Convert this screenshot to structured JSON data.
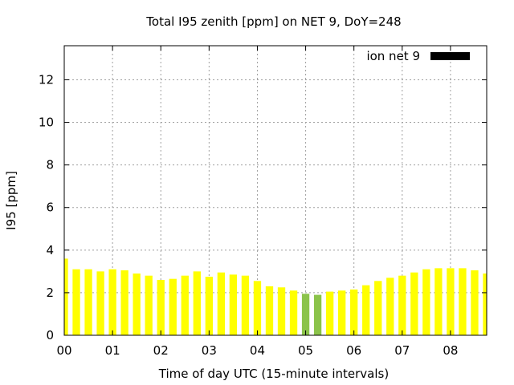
{
  "chart_data": {
    "type": "bar",
    "title": "Total I95 zenith [ppm] on NET 9, DoY=248",
    "xlabel": "Time of day UTC (15-minute intervals)",
    "ylabel": "I95 [ppm]",
    "ylim": [
      0,
      13.6
    ],
    "y_ticks": [
      "0",
      "2",
      "4",
      "6",
      "8",
      "10",
      "12"
    ],
    "x_ticks": [
      "00",
      "01",
      "02",
      "03",
      "04",
      "05",
      "06",
      "07",
      "08"
    ],
    "grid": true,
    "legend_position": "top-right",
    "interval_hours": 0.25,
    "x_range_hours": [
      0,
      8.75
    ],
    "series": [
      {
        "name": "ion net 9",
        "legend_color": "#000000",
        "default_color": "#ffff00",
        "highlight_color": "#8bc34a",
        "highlight_indices": [
          20,
          21
        ],
        "values": [
          3.6,
          3.1,
          3.1,
          3.0,
          3.1,
          3.05,
          2.9,
          2.8,
          2.6,
          2.65,
          2.8,
          3.0,
          2.75,
          2.95,
          2.85,
          2.8,
          2.55,
          2.3,
          2.25,
          2.1,
          1.95,
          1.9,
          2.05,
          2.1,
          2.15,
          2.35,
          2.55,
          2.7,
          2.8,
          2.95,
          3.1,
          3.15,
          3.15,
          3.15,
          3.05,
          2.9
        ]
      }
    ]
  }
}
